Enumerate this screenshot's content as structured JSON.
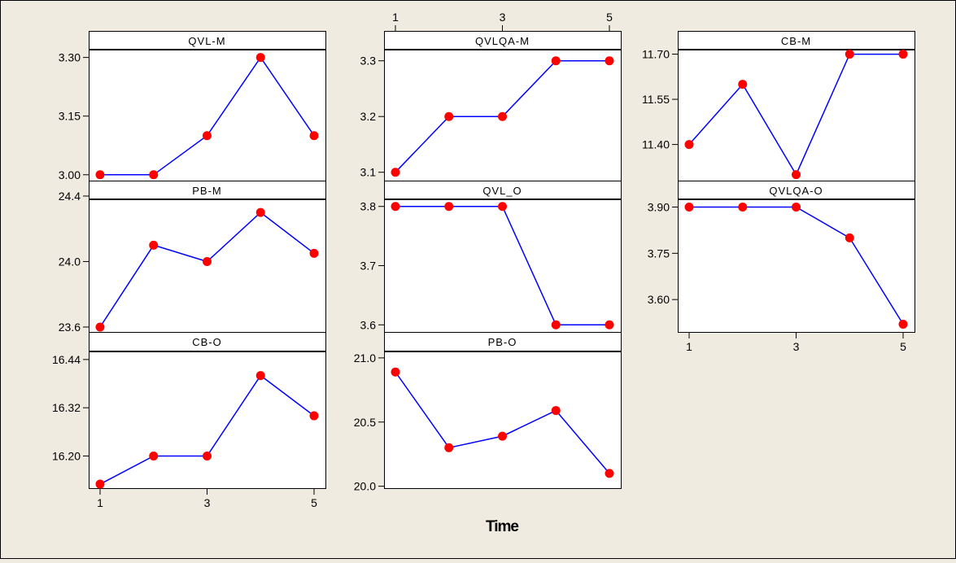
{
  "chart_data": {
    "type": "line",
    "xlabel": "Time",
    "x": [
      1,
      2,
      3,
      4,
      5
    ],
    "x_ticks": [
      1,
      3,
      5
    ],
    "marker_color": "#ff0000",
    "line_color": "#0000ff",
    "background_color": "#efebe0",
    "panels": [
      {
        "title": "QVL-M",
        "values": [
          3.0,
          3.0,
          3.1,
          3.3,
          3.1
        ],
        "ylim": [
          2.985,
          3.32
        ],
        "yticks": [
          "3.00",
          "3.15",
          "3.30"
        ]
      },
      {
        "title": "QVLQA-M",
        "values": [
          3.1,
          3.2,
          3.2,
          3.3,
          3.3
        ],
        "ylim": [
          3.085,
          3.32
        ],
        "yticks": [
          "3.1",
          "3.2",
          "3.3"
        ]
      },
      {
        "title": "CB-M",
        "values": [
          11.4,
          11.6,
          11.3,
          11.7,
          11.7
        ],
        "ylim": [
          11.28,
          11.715
        ],
        "yticks": [
          "11.40",
          "11.55",
          "11.70"
        ]
      },
      {
        "title": "PB-M",
        "values": [
          23.6,
          24.1,
          24.0,
          24.3,
          24.05
        ],
        "ylim": [
          23.57,
          24.38
        ],
        "yticks": [
          "23.6",
          "24.0",
          "24.4"
        ]
      },
      {
        "title": "QVL_O",
        "values": [
          3.8,
          3.8,
          3.8,
          3.6,
          3.6
        ],
        "ylim": [
          3.588,
          3.812
        ],
        "yticks": [
          "3.6",
          "3.7",
          "3.8"
        ]
      },
      {
        "title": "QVLQA-O",
        "values": [
          3.9,
          3.9,
          3.9,
          3.8,
          3.52
        ],
        "ylim": [
          3.495,
          3.925
        ],
        "yticks": [
          "3.60",
          "3.75",
          "3.90"
        ]
      },
      {
        "title": "CB-O",
        "values": [
          16.13,
          16.2,
          16.2,
          16.4,
          16.3
        ],
        "ylim": [
          16.12,
          16.46
        ],
        "yticks": [
          "16.20",
          "16.32",
          "16.44"
        ]
      },
      {
        "title": "PB-O",
        "values": [
          20.89,
          20.3,
          20.39,
          20.59,
          20.1
        ],
        "ylim": [
          19.985,
          21.05
        ],
        "yticks": [
          "20.0",
          "20.5",
          "21.0"
        ]
      }
    ]
  }
}
